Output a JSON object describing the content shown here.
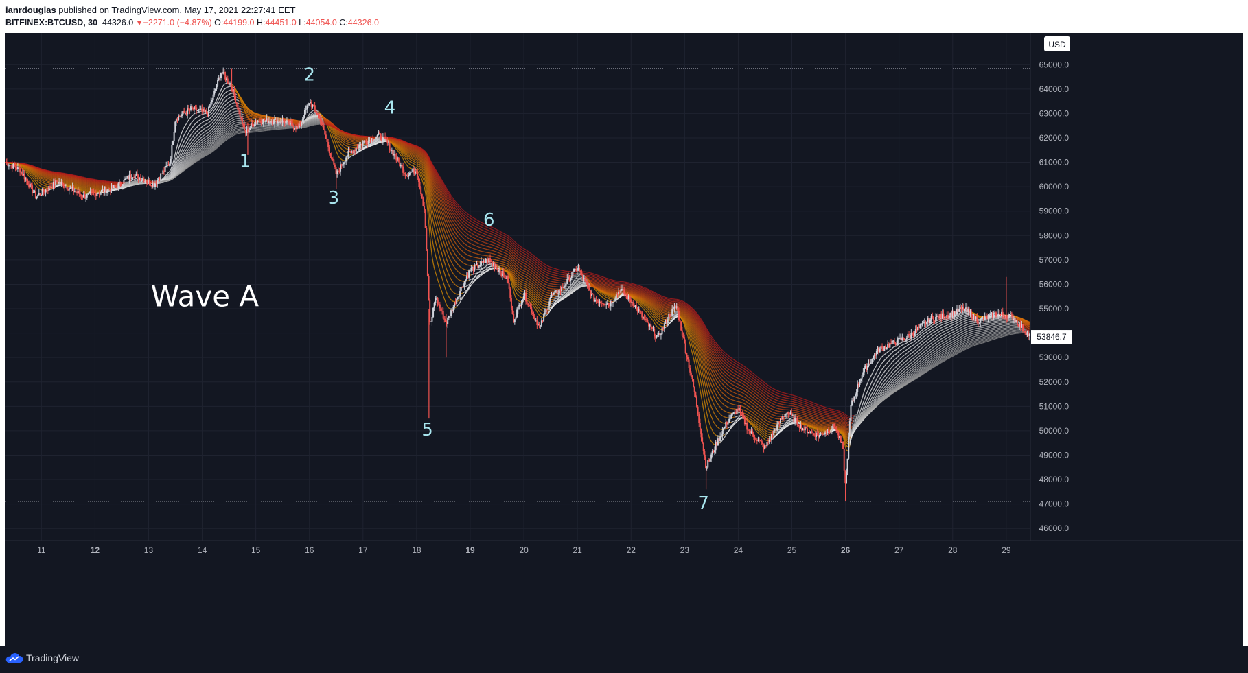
{
  "header": {
    "author": "ianrdouglas",
    "published_text": " published on TradingView.com, May 17, 2021 22:27:41 EET",
    "symbol": "BITFINEX:BTCUSD, 30",
    "last": "44326.0",
    "change": "−2271.0 (−4.87%)",
    "o_label": "O:",
    "o_value": "44199.0",
    "h_label": "H:",
    "h_value": "44451.0",
    "l_label": "L:",
    "l_value": "44054.0",
    "c_label": "C:",
    "c_value": "44326.0"
  },
  "footer": {
    "brand": "TradingView"
  },
  "colors": {
    "background": "#131722",
    "grid": "#1f2330",
    "up_candle": "#d1d4dc",
    "down_candle": "#ef5350",
    "ribbon_down": "#b71c1c",
    "ribbon_up": "#ffffff",
    "wave_label": "#a9e6ef",
    "text": "#b2b5be"
  },
  "chart_data": {
    "type": "candlestick",
    "interval": "30",
    "currency_label": "USD",
    "price_labels": [
      "46000.0",
      "47000.0",
      "48000.0",
      "49000.0",
      "50000.0",
      "51000.0",
      "52000.0",
      "53000.0",
      "54000.0",
      "55000.0",
      "56000.0",
      "57000.0",
      "58000.0",
      "59000.0",
      "60000.0",
      "61000.0",
      "62000.0",
      "63000.0",
      "64000.0",
      "65000.0"
    ],
    "ylim": [
      45500,
      66300
    ],
    "x_ticks": [
      {
        "label": "11",
        "day": 11,
        "bold": false
      },
      {
        "label": "12",
        "day": 12,
        "bold": true
      },
      {
        "label": "13",
        "day": 13,
        "bold": false
      },
      {
        "label": "14",
        "day": 14,
        "bold": false
      },
      {
        "label": "15",
        "day": 15,
        "bold": false
      },
      {
        "label": "16",
        "day": 16,
        "bold": false
      },
      {
        "label": "17",
        "day": 17,
        "bold": false
      },
      {
        "label": "18",
        "day": 18,
        "bold": false
      },
      {
        "label": "19",
        "day": 19,
        "bold": true
      },
      {
        "label": "20",
        "day": 20,
        "bold": false
      },
      {
        "label": "21",
        "day": 21,
        "bold": false
      },
      {
        "label": "22",
        "day": 22,
        "bold": false
      },
      {
        "label": "23",
        "day": 23,
        "bold": false
      },
      {
        "label": "24",
        "day": 24,
        "bold": false
      },
      {
        "label": "25",
        "day": 25,
        "bold": false
      },
      {
        "label": "26",
        "day": 26,
        "bold": true
      },
      {
        "label": "27",
        "day": 27,
        "bold": false
      },
      {
        "label": "28",
        "day": 28,
        "bold": false
      },
      {
        "label": "29",
        "day": 29,
        "bold": false
      }
    ],
    "xlim_days": [
      10.33,
      29.45
    ],
    "current_price": "53846.7",
    "current_price_value": 53846.7,
    "horizontal_levels": [
      64850,
      47100
    ],
    "price_path": [
      {
        "day": 10.33,
        "price": 61000
      },
      {
        "day": 10.6,
        "price": 60700
      },
      {
        "day": 10.9,
        "price": 59600
      },
      {
        "day": 11.3,
        "price": 60200
      },
      {
        "day": 11.8,
        "price": 59600
      },
      {
        "day": 12.4,
        "price": 60000
      },
      {
        "day": 12.7,
        "price": 60500
      },
      {
        "day": 13.1,
        "price": 60100
      },
      {
        "day": 13.4,
        "price": 61000
      },
      {
        "day": 13.5,
        "price": 62800
      },
      {
        "day": 13.8,
        "price": 63200
      },
      {
        "day": 14.1,
        "price": 63000
      },
      {
        "day": 14.35,
        "price": 64700
      },
      {
        "day": 14.55,
        "price": 64100
      },
      {
        "day": 14.8,
        "price": 62200
      },
      {
        "day": 15.0,
        "price": 62700
      },
      {
        "day": 15.5,
        "price": 62700
      },
      {
        "day": 15.8,
        "price": 62400
      },
      {
        "day": 16.0,
        "price": 63500
      },
      {
        "day": 16.2,
        "price": 62800
      },
      {
        "day": 16.5,
        "price": 60500
      },
      {
        "day": 16.7,
        "price": 61300
      },
      {
        "day": 17.0,
        "price": 61800
      },
      {
        "day": 17.3,
        "price": 62100
      },
      {
        "day": 17.45,
        "price": 61800
      },
      {
        "day": 17.8,
        "price": 60500
      },
      {
        "day": 18.0,
        "price": 60700
      },
      {
        "day": 18.15,
        "price": 59000
      },
      {
        "day": 18.25,
        "price": 54200
      },
      {
        "day": 18.35,
        "price": 55500
      },
      {
        "day": 18.55,
        "price": 54400
      },
      {
        "day": 18.8,
        "price": 55700
      },
      {
        "day": 19.0,
        "price": 56600
      },
      {
        "day": 19.35,
        "price": 57000
      },
      {
        "day": 19.7,
        "price": 56200
      },
      {
        "day": 19.8,
        "price": 54500
      },
      {
        "day": 20.0,
        "price": 55600
      },
      {
        "day": 20.3,
        "price": 54200
      },
      {
        "day": 20.5,
        "price": 55500
      },
      {
        "day": 20.7,
        "price": 55800
      },
      {
        "day": 21.0,
        "price": 56700
      },
      {
        "day": 21.3,
        "price": 55400
      },
      {
        "day": 21.6,
        "price": 55200
      },
      {
        "day": 21.8,
        "price": 55800
      },
      {
        "day": 22.05,
        "price": 55200
      },
      {
        "day": 22.2,
        "price": 54700
      },
      {
        "day": 22.5,
        "price": 53800
      },
      {
        "day": 22.7,
        "price": 54700
      },
      {
        "day": 22.85,
        "price": 55100
      },
      {
        "day": 23.0,
        "price": 53500
      },
      {
        "day": 23.2,
        "price": 51400
      },
      {
        "day": 23.4,
        "price": 48500
      },
      {
        "day": 23.6,
        "price": 49500
      },
      {
        "day": 23.8,
        "price": 50400
      },
      {
        "day": 24.0,
        "price": 50900
      },
      {
        "day": 24.2,
        "price": 50000
      },
      {
        "day": 24.5,
        "price": 49300
      },
      {
        "day": 24.7,
        "price": 50100
      },
      {
        "day": 24.9,
        "price": 50800
      },
      {
        "day": 25.2,
        "price": 50100
      },
      {
        "day": 25.5,
        "price": 49800
      },
      {
        "day": 25.8,
        "price": 50200
      },
      {
        "day": 25.95,
        "price": 49300
      },
      {
        "day": 26.0,
        "price": 47700
      },
      {
        "day": 26.1,
        "price": 51000
      },
      {
        "day": 26.3,
        "price": 52300
      },
      {
        "day": 26.6,
        "price": 53300
      },
      {
        "day": 26.9,
        "price": 53600
      },
      {
        "day": 27.2,
        "price": 53900
      },
      {
        "day": 27.6,
        "price": 54600
      },
      {
        "day": 28.0,
        "price": 54800
      },
      {
        "day": 28.2,
        "price": 55000
      },
      {
        "day": 28.5,
        "price": 54500
      },
      {
        "day": 28.8,
        "price": 54800
      },
      {
        "day": 29.1,
        "price": 54700
      },
      {
        "day": 29.45,
        "price": 53846.7
      }
    ],
    "wicks": [
      {
        "day": 14.55,
        "low": 63900,
        "high": 64850
      },
      {
        "day": 14.85,
        "low": 61300,
        "high": 62600
      },
      {
        "day": 16.5,
        "low": 59900,
        "high": 60800
      },
      {
        "day": 18.23,
        "low": 50500,
        "high": 55000
      },
      {
        "day": 18.55,
        "low": 53000,
        "high": 54800
      },
      {
        "day": 23.4,
        "low": 47600,
        "high": 48800
      },
      {
        "day": 26.0,
        "low": 47100,
        "high": 48200
      },
      {
        "day": 29.0,
        "low": 54400,
        "high": 56300
      }
    ],
    "annotations": [
      {
        "text": "1",
        "day": 14.8,
        "price": 60800
      },
      {
        "text": "2",
        "day": 16.0,
        "price": 64350
      },
      {
        "text": "3",
        "day": 16.45,
        "price": 59300
      },
      {
        "text": "4",
        "day": 17.5,
        "price": 63000
      },
      {
        "text": "5",
        "day": 18.2,
        "price": 49800
      },
      {
        "text": "6",
        "day": 19.35,
        "price": 58400
      },
      {
        "text": "7",
        "day": 23.35,
        "price": 46800
      }
    ],
    "title_annotation": {
      "text": "Wave A",
      "day": 14.05,
      "price": 55100
    }
  }
}
